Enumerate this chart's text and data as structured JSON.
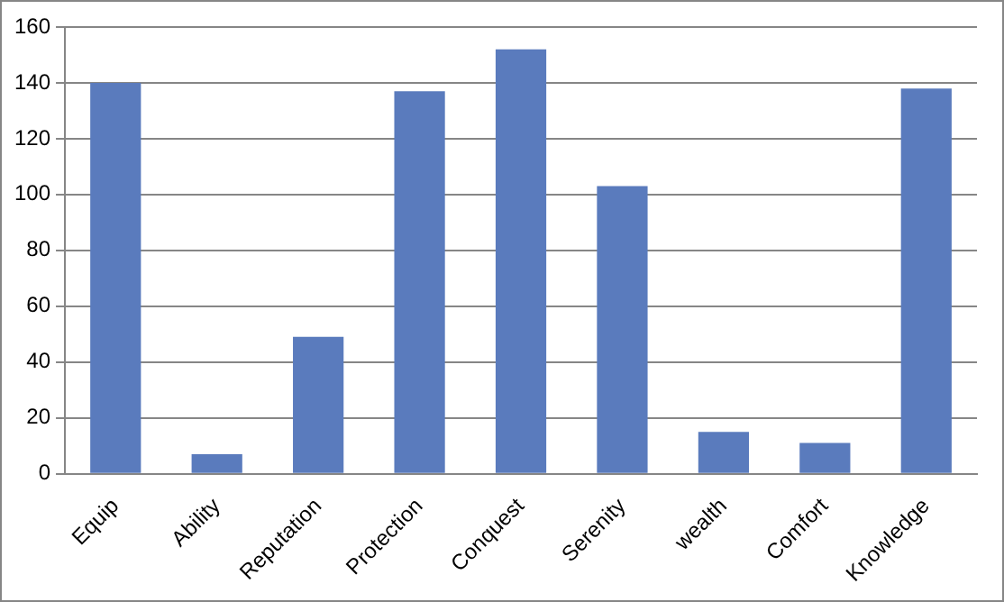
{
  "chart_data": {
    "type": "bar",
    "categories": [
      "Equip",
      "Ability",
      "Reputation",
      "Protection",
      "Conquest",
      "Serenity",
      "wealth",
      "Comfort",
      "Knowledge"
    ],
    "values": [
      140,
      7,
      49,
      137,
      152,
      103,
      15,
      11,
      138
    ],
    "color": "#5a7bbd",
    "ylim": [
      0,
      160
    ],
    "yticks": [
      0,
      20,
      40,
      60,
      80,
      100,
      120,
      140,
      160
    ],
    "grid": "y",
    "legend": false
  }
}
